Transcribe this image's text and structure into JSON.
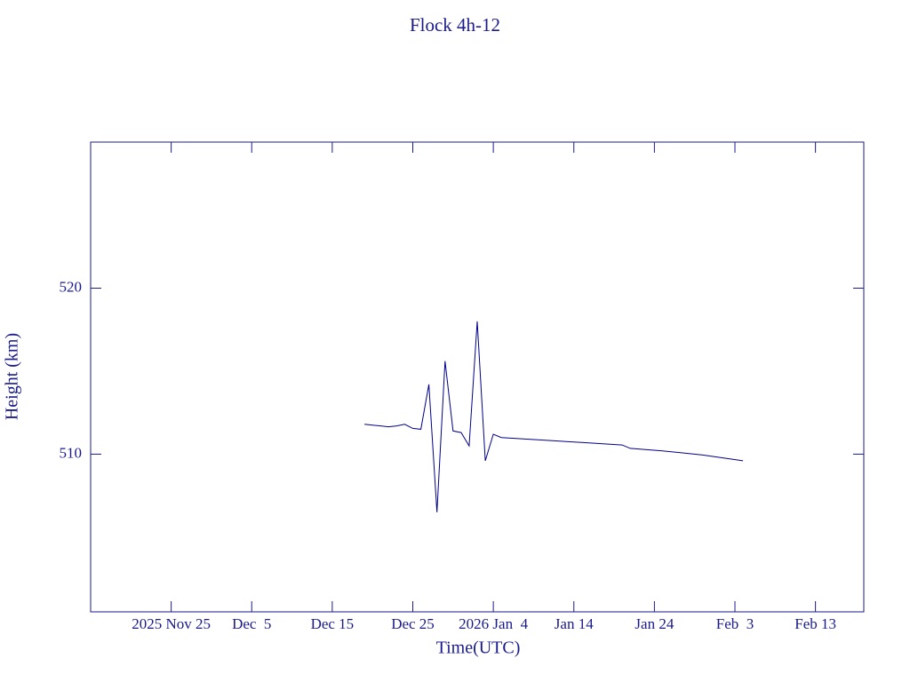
{
  "chart_data": {
    "type": "line",
    "title": "Flock 4h-12",
    "x_label": "Time(UTC)",
    "y_label": "Height (km)",
    "x": [
      "2025-12-19",
      "2025-12-20",
      "2025-12-21",
      "2025-12-22",
      "2025-12-23",
      "2025-12-24",
      "2025-12-25",
      "2025-12-26",
      "2025-12-27",
      "2025-12-28",
      "2025-12-29",
      "2025-12-30",
      "2025-12-31",
      "2026-01-01",
      "2026-01-02",
      "2026-01-03",
      "2026-01-04",
      "2026-01-05",
      "2026-01-10",
      "2026-01-15",
      "2026-01-20",
      "2026-01-21",
      "2026-01-25",
      "2026-01-30",
      "2026-02-04"
    ],
    "series": [
      {
        "name": "Flock 4h-12",
        "color": "#00008b",
        "values": [
          511.8,
          511.75,
          511.7,
          511.65,
          511.7,
          511.8,
          511.55,
          511.5,
          514.2,
          506.5,
          515.6,
          511.4,
          511.3,
          510.5,
          518.0,
          509.6,
          511.2,
          511.0,
          510.85,
          510.7,
          510.55,
          510.35,
          510.2,
          509.95,
          509.6
        ]
      }
    ],
    "xlim": [
      "2025-11-15",
      "2026-02-19"
    ],
    "xticks": [
      {
        "value": "2025-11-25",
        "label": "2025 Nov 25"
      },
      {
        "value": "2025-12-05",
        "label": "Dec  5"
      },
      {
        "value": "2025-12-15",
        "label": "Dec 15"
      },
      {
        "value": "2025-12-25",
        "label": "Dec 25"
      },
      {
        "value": "2026-01-04",
        "label": "2026 Jan  4"
      },
      {
        "value": "2026-01-14",
        "label": "Jan 14"
      },
      {
        "value": "2026-01-24",
        "label": "Jan 24"
      },
      {
        "value": "2026-02-03",
        "label": "Feb  3"
      },
      {
        "value": "2026-02-13",
        "label": "Feb 13"
      }
    ],
    "ylim": [
      500.5,
      528.8
    ],
    "yticks": [
      510,
      520
    ],
    "grid": false,
    "color": "#1a1a8c"
  }
}
